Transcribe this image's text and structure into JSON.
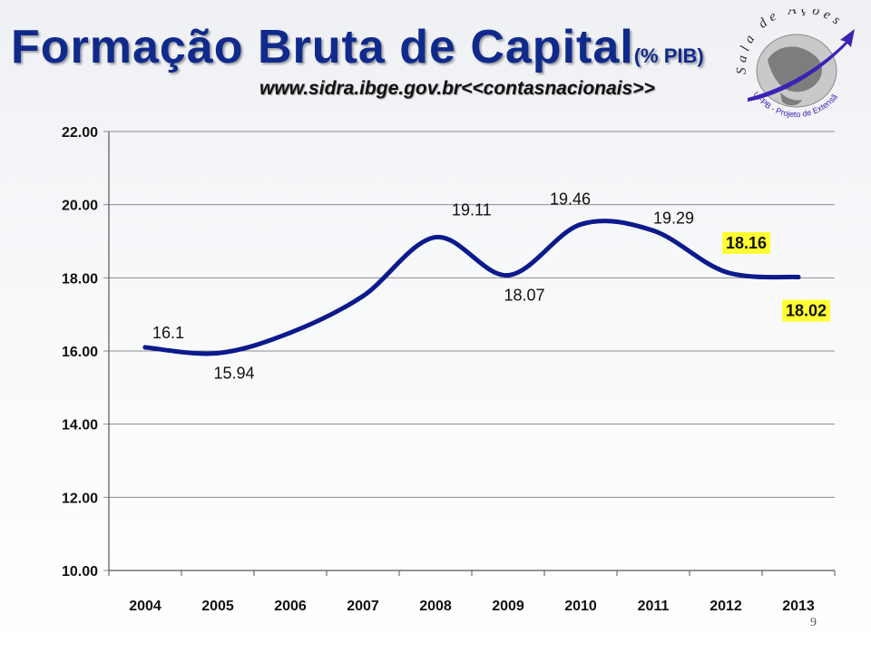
{
  "slide": {
    "title_main": "Formação  Bruta de Capital",
    "title_unit": "(% PIB)",
    "source": "www.sidra.ibge.gov.br<<contasnacionais>>",
    "logo_text_top": "Sala de Ações",
    "logo_text_bottom": "UFPB - Projeto de Extensão",
    "page_number": "9"
  },
  "colors": {
    "title": "#102a8c",
    "line": "#0b1a8c",
    "highlight": "#ffff33",
    "grid": "#8c8c8c"
  },
  "chart_data": {
    "type": "line",
    "x": [
      "2004",
      "2005",
      "2006",
      "2007",
      "2008",
      "2009",
      "2010",
      "2011",
      "2012",
      "2013"
    ],
    "series": [
      {
        "values": [
          16.1,
          15.94,
          16.5,
          17.5,
          19.11,
          18.07,
          19.46,
          19.29,
          18.16,
          18.02
        ]
      }
    ],
    "data_labels": [
      {
        "x": "2004",
        "text": "16.1",
        "highlight": false
      },
      {
        "x": "2005",
        "text": "15.94",
        "highlight": false
      },
      {
        "x": "2008",
        "text": "19.11",
        "highlight": false
      },
      {
        "x": "2009",
        "text": "18.07",
        "highlight": false
      },
      {
        "x": "2010",
        "text": "19.46",
        "highlight": false
      },
      {
        "x": "2011",
        "text": "19.29",
        "highlight": false
      },
      {
        "x": "2012",
        "text": "18.16",
        "highlight": true
      },
      {
        "x": "2013",
        "text": "18.02",
        "highlight": true
      }
    ],
    "y_ticks": [
      "10.00",
      "12.00",
      "14.00",
      "16.00",
      "18.00",
      "20.00",
      "22.00"
    ],
    "ylim": [
      10,
      22
    ],
    "grid": true,
    "smooth": true,
    "xlabel": "",
    "ylabel": ""
  }
}
